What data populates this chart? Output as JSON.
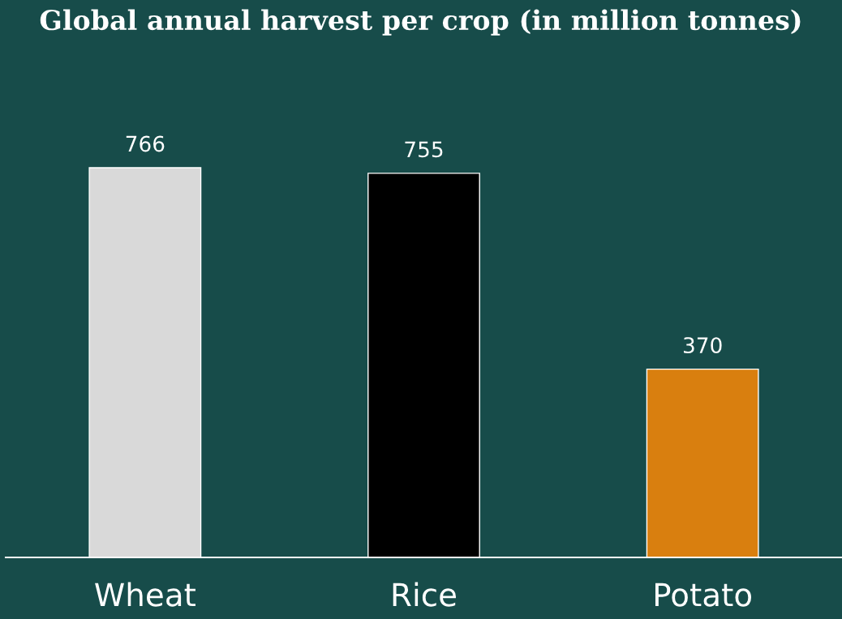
{
  "chart_data": {
    "type": "bar",
    "title": "Global annual harvest per crop (in million tonnes)",
    "categories": [
      "Wheat",
      "Rice",
      "Potato"
    ],
    "values": [
      766,
      755,
      370
    ],
    "colors": [
      "#d9d9d9",
      "#000000",
      "#d97f0f"
    ],
    "data_labels": true,
    "grid": false,
    "legend": false
  }
}
